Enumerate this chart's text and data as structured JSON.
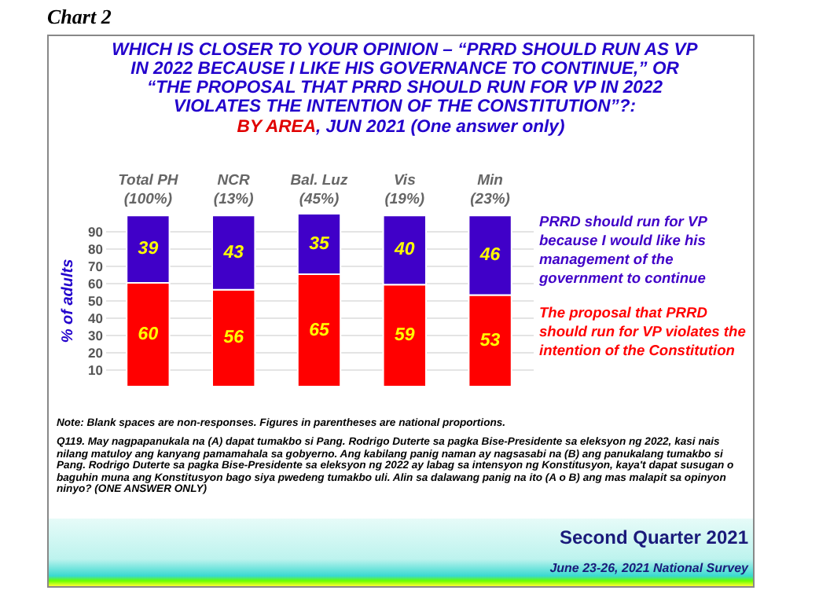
{
  "chart_data": {
    "type": "bar",
    "title": "WHICH IS CLOSER TO YOUR OPINION – “PRRD SHOULD RUN AS VP IN 2022 BECAUSE I LIKE HIS GOVERNANCE TO CONTINUE,” OR “THE PROPOSAL THAT PRRD SHOULD RUN FOR VP IN 2022 VIOLATES THE INTENTION OF THE CONSTITUTION”?:",
    "subtitle": "BY AREA, JUN 2021 (One answer only)",
    "ylabel": "% of adults",
    "categories": [
      "Total PH (100%)",
      "NCR (13%)",
      "Bal. Luz (45%)",
      "Vis (19%)",
      "Min (23%)"
    ],
    "series": [
      {
        "name": "The proposal that PRRD should run for VP violates the intention of the Constitution",
        "color": "#ff0000",
        "values": [
          60,
          56,
          65,
          59,
          53
        ]
      },
      {
        "name": "PRRD should run for VP because I would like his management of the government to continue",
        "color": "#4000c8",
        "values": [
          39,
          43,
          35,
          40,
          46
        ]
      }
    ],
    "stacked": true,
    "ylim": [
      0,
      100
    ],
    "yticks": [
      10,
      20,
      30,
      40,
      50,
      60,
      70,
      80,
      90
    ],
    "grid": "y",
    "legend": "right",
    "data_labels": true,
    "annotations": [
      "Chart 2",
      "Note: Blank spaces are non-responses. Figures in parentheses are national proportions.",
      "Q119. May nagpapanukala na (A) dapat tumakbo si Pang. Rodrigo Duterte sa pagka Bise-Presidente sa eleksyon ng 2022, kasi nais nilang matuloy ang kanyang pamamahala sa gobyerno. Ang kabilang panig naman ay nagsasabi na (B) ang panukalang tumakbo si Pang. Rodrigo Duterte sa pagka Bise-Presidente sa eleksyon ng 2022 ay labag sa intensyon ng Konstitusyon, kaya't dapat susugan o baguhin muna ang Konstitusyon bago siya pwedeng tumakbo uli. Alin sa dalawang panig na ito (A o B) ang mas malapit sa opinyon ninyo? (ONE ANSWER ONLY)",
      "Second Quarter 2021",
      "June 23-26, 2021 National Survey"
    ]
  }
}
